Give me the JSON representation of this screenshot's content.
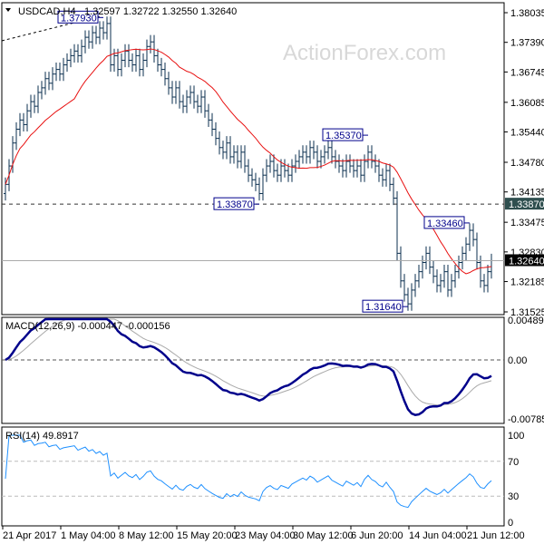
{
  "header": {
    "symbol": "USDCAD,H4",
    "ohlc": "1.32597 1.32722 1.32550 1.32640"
  },
  "watermark": "ActionForex.com",
  "price_axis": {
    "ticks": [
      "1.38035",
      "1.37390",
      "1.36745",
      "1.36085",
      "1.35440",
      "1.34780",
      "1.34135",
      "1.33475",
      "1.32830",
      "1.32185",
      "1.31525"
    ],
    "tick_values": [
      1.38035,
      1.3739,
      1.36745,
      1.36085,
      1.3544,
      1.3478,
      1.34135,
      1.33475,
      1.3283,
      1.32185,
      1.31525
    ],
    "hline_label": "1.33870",
    "hline_value": 1.3387,
    "current_label": "1.32640",
    "current_value": 1.3264
  },
  "annotations": [
    {
      "label": "1.37930",
      "value": 1.3793,
      "bar": 27
    },
    {
      "label": "1.33870",
      "value": 1.3387,
      "bar": 70
    },
    {
      "label": "1.35370",
      "value": 1.3537,
      "bar": 100
    },
    {
      "label": "1.33460",
      "value": 1.3346,
      "bar": 128
    },
    {
      "label": "1.31640",
      "value": 1.3164,
      "bar": 111
    }
  ],
  "macd": {
    "label": "MACD(12,26,9) -0.000447 -0.000156",
    "ticks": [
      "0.004892",
      "0.00",
      "-0.007857"
    ]
  },
  "rsi": {
    "label": "RSI(14) 49.8917",
    "ticks": [
      "100",
      "70",
      "30",
      "0"
    ]
  },
  "time_axis": [
    "21 Apr 2017",
    "1 May 04:00",
    "8 May 12:00",
    "15 May 20:00",
    "23 May 04:00",
    "30 May 12:00",
    "6 Jun 20:00",
    "14 Jun 04:00",
    "21 Jun 12:00"
  ],
  "colors": {
    "bars": "#0b2f4f",
    "ma": "#e81010",
    "macd": "#00008b",
    "signal": "#a9a9a9",
    "rsi": "#1e90ff",
    "label_border": "#00008b",
    "current_bg": "#000000",
    "hline_bg": "#2f4f4f"
  },
  "chart_data": {
    "type": "ohlc",
    "closes": [
      1.343,
      1.347,
      1.352,
      1.355,
      1.357,
      1.356,
      1.359,
      1.361,
      1.36,
      1.363,
      1.364,
      1.366,
      1.365,
      1.367,
      1.368,
      1.367,
      1.369,
      1.37,
      1.371,
      1.372,
      1.371,
      1.373,
      1.375,
      1.374,
      1.376,
      1.375,
      1.377,
      1.376,
      1.378,
      1.369,
      1.371,
      1.368,
      1.37,
      1.372,
      1.37,
      1.369,
      1.371,
      1.368,
      1.37,
      1.373,
      1.374,
      1.371,
      1.369,
      1.368,
      1.366,
      1.364,
      1.362,
      1.364,
      1.361,
      1.36,
      1.362,
      1.363,
      1.361,
      1.36,
      1.362,
      1.359,
      1.357,
      1.355,
      1.353,
      1.351,
      1.35,
      1.352,
      1.349,
      1.35,
      1.348,
      1.35,
      1.347,
      1.345,
      1.344,
      1.343,
      1.341,
      1.345,
      1.347,
      1.348,
      1.346,
      1.345,
      1.347,
      1.346,
      1.345,
      1.347,
      1.348,
      1.349,
      1.35,
      1.349,
      1.351,
      1.35,
      1.348,
      1.349,
      1.35,
      1.351,
      1.349,
      1.348,
      1.347,
      1.346,
      1.348,
      1.347,
      1.346,
      1.347,
      1.345,
      1.348,
      1.35,
      1.348,
      1.347,
      1.345,
      1.344,
      1.346,
      1.343,
      1.34,
      1.328,
      1.322,
      1.319,
      1.317,
      1.32,
      1.322,
      1.324,
      1.326,
      1.328,
      1.325,
      1.323,
      1.321,
      1.322,
      1.324,
      1.32,
      1.322,
      1.324,
      1.326,
      1.328,
      1.33,
      1.333,
      1.331,
      1.326,
      1.322,
      1.321,
      1.324,
      1.3264
    ],
    "ylim": [
      1.31525,
      1.38035
    ]
  }
}
